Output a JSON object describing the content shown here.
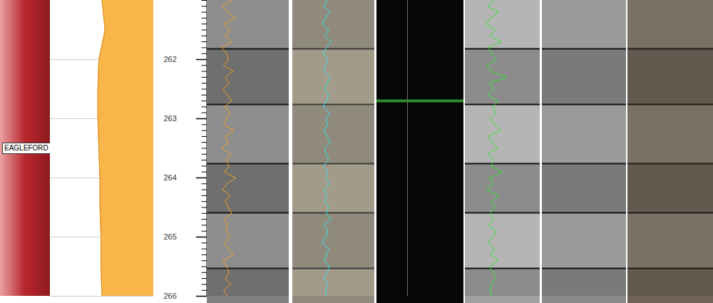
{
  "chart_data": {
    "type": "well_log",
    "ylim": [
      261,
      266
    ],
    "yticks": [
      262,
      263,
      264,
      265,
      266
    ],
    "grid": true,
    "tick_labels": "y",
    "depths": [
      261.0,
      261.1,
      261.2,
      261.3,
      261.4,
      261.5,
      261.6,
      261.7,
      261.8,
      261.9,
      262.0,
      262.1,
      262.2,
      262.3,
      262.4,
      262.5,
      262.6,
      262.7,
      262.8,
      262.9,
      263.0,
      263.1,
      263.2,
      263.3,
      263.4,
      263.5,
      263.6,
      263.7,
      263.8,
      263.9,
      264.0,
      264.1,
      264.2,
      264.3,
      264.4,
      264.5,
      264.6,
      264.7,
      264.8,
      264.9,
      265.0,
      265.1,
      265.2,
      265.3,
      265.4,
      265.5,
      265.6,
      265.7,
      265.8,
      265.9,
      266.0
    ],
    "formations": [
      {
        "name": "EAGLEFORD",
        "top": 261,
        "base": 266,
        "color": "#b8262c"
      }
    ],
    "area_curve": {
      "color": "#f7b54a",
      "xlim": [
        0,
        100
      ],
      "depths": [
        261,
        261.5,
        262,
        262.5,
        263,
        263.5,
        264,
        264.5,
        265,
        265.5,
        266
      ],
      "values": [
        50,
        53,
        47,
        46,
        46,
        47,
        48,
        48,
        49,
        49,
        50
      ]
    },
    "tracks": [
      {
        "color": "#f0a020",
        "xlim": [
          0,
          100
        ],
        "values": [
          30,
          18,
          25,
          35,
          20,
          28,
          22,
          30,
          18,
          24,
          26,
          20,
          32,
          22,
          27,
          19,
          25,
          30,
          21,
          28,
          24,
          20,
          33,
          22,
          26,
          18,
          29,
          23,
          27,
          21,
          35,
          24,
          19,
          28,
          22,
          26,
          30,
          20,
          25,
          23,
          28,
          21,
          26,
          32,
          19,
          24,
          27,
          22,
          29,
          20,
          25
        ]
      },
      {
        "color": "#2ee6f0",
        "xlim": [
          0,
          100
        ],
        "values": [
          42,
          38,
          45,
          40,
          36,
          44,
          39,
          47,
          41,
          37,
          43,
          40,
          38,
          46,
          42,
          39,
          44,
          41,
          37,
          45,
          40,
          43,
          38,
          42,
          46,
          39,
          41,
          44,
          37,
          43,
          40,
          45,
          38,
          42,
          39,
          44,
          41,
          47,
          38,
          43,
          40,
          36,
          44,
          41,
          39,
          45,
          42,
          38,
          43,
          40,
          41
        ]
      },
      {
        "color": "#33e633",
        "xlim": [
          0,
          100
        ],
        "values": [
          38,
          30,
          45,
          34,
          28,
          40,
          33,
          48,
          31,
          36,
          42,
          29,
          35,
          55,
          32,
          38,
          30,
          44,
          36,
          41,
          33,
          39,
          47,
          31,
          36,
          43,
          30,
          38,
          34,
          50,
          32,
          37,
          29,
          45,
          35,
          40,
          33,
          38,
          31,
          42,
          36,
          30,
          39,
          34,
          44,
          32,
          37,
          41,
          35,
          33,
          36
        ]
      }
    ],
    "core_breaks": [
      261.82,
      262.76,
      263.76,
      264.59,
      265.53
    ],
    "highlight": {
      "depth": 262.7,
      "color": "#2e8b2e"
    }
  }
}
